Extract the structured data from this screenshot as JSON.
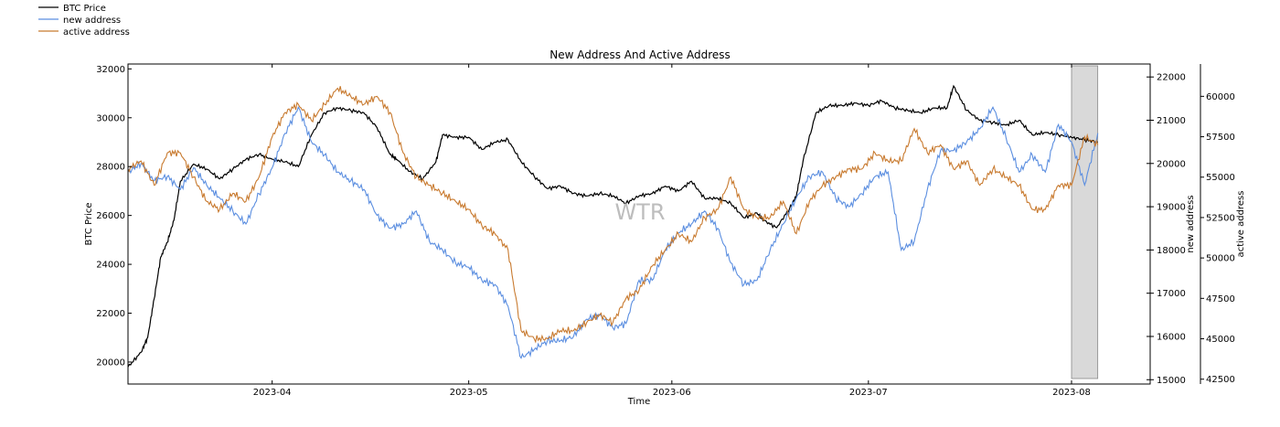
{
  "chart_data": {
    "type": "line",
    "title": "New Address And Active Address",
    "xlabel": "Time",
    "watermark": "WTR",
    "x_ticks": [
      "2023-04",
      "2023-05",
      "2023-06",
      "2023-07",
      "2023-08"
    ],
    "x_range": [
      "2023-03-10",
      "2023-08-13"
    ],
    "legend_placement": "top-left outside",
    "grid": false,
    "highlight_range": [
      "2023-08-01",
      "2023-08-05"
    ],
    "highlight_color": "#d9d9d9",
    "axes": [
      {
        "id": "btc",
        "label": "BTC Price",
        "side": "left",
        "ylim": [
          19100,
          32200
        ],
        "ticks": [
          20000,
          22000,
          24000,
          26000,
          28000,
          30000,
          32000
        ]
      },
      {
        "id": "new",
        "label": "new address",
        "side": "right",
        "ylim": [
          14900,
          22300
        ],
        "ticks": [
          15000,
          16000,
          17000,
          18000,
          19000,
          20000,
          21000,
          22000
        ]
      },
      {
        "id": "active",
        "label": "active address",
        "side": "right-outer",
        "ylim": [
          42200,
          62000
        ],
        "ticks": [
          42500,
          45000,
          47500,
          50000,
          52500,
          55000,
          57500,
          60000
        ]
      }
    ],
    "series": [
      {
        "name": "BTC Price",
        "axis": "btc",
        "color": "#000000",
        "x": [
          "2023-03-10",
          "2023-03-12",
          "2023-03-13",
          "2023-03-14",
          "2023-03-15",
          "2023-03-16",
          "2023-03-17",
          "2023-03-18",
          "2023-03-20",
          "2023-03-22",
          "2023-03-24",
          "2023-03-26",
          "2023-03-28",
          "2023-03-30",
          "2023-04-01",
          "2023-04-03",
          "2023-04-05",
          "2023-04-07",
          "2023-04-09",
          "2023-04-11",
          "2023-04-13",
          "2023-04-15",
          "2023-04-17",
          "2023-04-19",
          "2023-04-20",
          "2023-04-22",
          "2023-04-24",
          "2023-04-26",
          "2023-04-27",
          "2023-04-29",
          "2023-05-01",
          "2023-05-03",
          "2023-05-05",
          "2023-05-07",
          "2023-05-09",
          "2023-05-11",
          "2023-05-13",
          "2023-05-15",
          "2023-05-17",
          "2023-05-19",
          "2023-05-21",
          "2023-05-23",
          "2023-05-25",
          "2023-05-27",
          "2023-05-29",
          "2023-05-31",
          "2023-06-02",
          "2023-06-04",
          "2023-06-06",
          "2023-06-08",
          "2023-06-10",
          "2023-06-12",
          "2023-06-14",
          "2023-06-15",
          "2023-06-17",
          "2023-06-19",
          "2023-06-20",
          "2023-06-21",
          "2023-06-23",
          "2023-06-25",
          "2023-06-27",
          "2023-06-29",
          "2023-07-01",
          "2023-07-03",
          "2023-07-05",
          "2023-07-07",
          "2023-07-09",
          "2023-07-11",
          "2023-07-13",
          "2023-07-14",
          "2023-07-16",
          "2023-07-18",
          "2023-07-20",
          "2023-07-22",
          "2023-07-24",
          "2023-07-26",
          "2023-07-28",
          "2023-07-30",
          "2023-08-01",
          "2023-08-03",
          "2023-08-05"
        ],
        "values": [
          19800,
          20400,
          21000,
          22600,
          24300,
          24900,
          25800,
          27400,
          28100,
          27900,
          27500,
          27900,
          28300,
          28500,
          28300,
          28200,
          28000,
          29300,
          30200,
          30400,
          30300,
          30200,
          29600,
          28500,
          28300,
          27800,
          27500,
          28200,
          29300,
          29200,
          29200,
          28700,
          29000,
          29100,
          28200,
          27600,
          27100,
          27200,
          26900,
          26800,
          26900,
          26800,
          26500,
          26800,
          26900,
          27200,
          27000,
          27400,
          26700,
          26700,
          26500,
          25900,
          26100,
          25800,
          25500,
          26300,
          26800,
          28200,
          30200,
          30500,
          30500,
          30600,
          30500,
          30700,
          30400,
          30300,
          30200,
          30400,
          30400,
          31300,
          30300,
          29900,
          29800,
          29700,
          29900,
          29300,
          29400,
          29300,
          29200,
          29100,
          29000
        ]
      },
      {
        "name": "new address",
        "axis": "new",
        "color": "#5b8ee0",
        "x": [
          "2023-03-10",
          "2023-03-12",
          "2023-03-14",
          "2023-03-16",
          "2023-03-18",
          "2023-03-20",
          "2023-03-22",
          "2023-03-24",
          "2023-03-26",
          "2023-03-28",
          "2023-03-30",
          "2023-04-01",
          "2023-04-03",
          "2023-04-05",
          "2023-04-07",
          "2023-04-09",
          "2023-04-11",
          "2023-04-13",
          "2023-04-15",
          "2023-04-17",
          "2023-04-19",
          "2023-04-21",
          "2023-04-23",
          "2023-04-25",
          "2023-04-27",
          "2023-04-29",
          "2023-05-01",
          "2023-05-03",
          "2023-05-05",
          "2023-05-07",
          "2023-05-09",
          "2023-05-11",
          "2023-05-13",
          "2023-05-15",
          "2023-05-17",
          "2023-05-19",
          "2023-05-21",
          "2023-05-23",
          "2023-05-25",
          "2023-05-27",
          "2023-05-29",
          "2023-05-31",
          "2023-06-02",
          "2023-06-04",
          "2023-06-06",
          "2023-06-08",
          "2023-06-10",
          "2023-06-12",
          "2023-06-14",
          "2023-06-16",
          "2023-06-18",
          "2023-06-20",
          "2023-06-22",
          "2023-06-24",
          "2023-06-26",
          "2023-06-28",
          "2023-06-30",
          "2023-07-02",
          "2023-07-04",
          "2023-07-06",
          "2023-07-08",
          "2023-07-10",
          "2023-07-12",
          "2023-07-14",
          "2023-07-16",
          "2023-07-18",
          "2023-07-20",
          "2023-07-22",
          "2023-07-24",
          "2023-07-26",
          "2023-07-28",
          "2023-07-30",
          "2023-08-01",
          "2023-08-03",
          "2023-08-05"
        ],
        "values": [
          19800,
          20000,
          19600,
          19700,
          19400,
          19900,
          19500,
          19200,
          18900,
          18600,
          19300,
          19900,
          20700,
          21300,
          20500,
          20200,
          19800,
          19600,
          19400,
          18800,
          18500,
          18600,
          18900,
          18200,
          18000,
          17700,
          17600,
          17300,
          17200,
          16700,
          15500,
          15700,
          15900,
          15900,
          16000,
          16400,
          16500,
          16200,
          16300,
          17300,
          17300,
          18000,
          18400,
          18600,
          18900,
          18500,
          17700,
          17200,
          17300,
          18000,
          18600,
          19200,
          19700,
          19800,
          19200,
          19000,
          19300,
          19700,
          19800,
          18000,
          18200,
          19400,
          20300,
          20300,
          20500,
          20800,
          21300,
          20600,
          19800,
          20200,
          19800,
          20900,
          20500,
          19500,
          20700
        ]
      },
      {
        "name": "active address",
        "axis": "active",
        "color": "#c87a2f",
        "x": [
          "2023-03-10",
          "2023-03-12",
          "2023-03-14",
          "2023-03-16",
          "2023-03-18",
          "2023-03-20",
          "2023-03-22",
          "2023-03-24",
          "2023-03-26",
          "2023-03-28",
          "2023-03-30",
          "2023-04-01",
          "2023-04-03",
          "2023-04-05",
          "2023-04-07",
          "2023-04-09",
          "2023-04-11",
          "2023-04-13",
          "2023-04-15",
          "2023-04-17",
          "2023-04-19",
          "2023-04-21",
          "2023-04-23",
          "2023-04-25",
          "2023-04-27",
          "2023-04-29",
          "2023-05-01",
          "2023-05-03",
          "2023-05-05",
          "2023-05-07",
          "2023-05-09",
          "2023-05-11",
          "2023-05-13",
          "2023-05-15",
          "2023-05-17",
          "2023-05-19",
          "2023-05-21",
          "2023-05-23",
          "2023-05-25",
          "2023-05-27",
          "2023-05-29",
          "2023-05-31",
          "2023-06-02",
          "2023-06-04",
          "2023-06-06",
          "2023-06-08",
          "2023-06-10",
          "2023-06-12",
          "2023-06-14",
          "2023-06-16",
          "2023-06-18",
          "2023-06-20",
          "2023-06-22",
          "2023-06-24",
          "2023-06-26",
          "2023-06-28",
          "2023-06-30",
          "2023-07-02",
          "2023-07-04",
          "2023-07-06",
          "2023-07-08",
          "2023-07-10",
          "2023-07-12",
          "2023-07-14",
          "2023-07-16",
          "2023-07-18",
          "2023-07-20",
          "2023-07-22",
          "2023-07-24",
          "2023-07-26",
          "2023-07-28",
          "2023-07-30",
          "2023-08-01",
          "2023-08-03",
          "2023-08-05"
        ],
        "values": [
          55500,
          56000,
          54500,
          56500,
          56500,
          55000,
          53500,
          53000,
          54000,
          53500,
          55000,
          57500,
          59000,
          59500,
          58500,
          59500,
          60500,
          60000,
          59500,
          60000,
          59000,
          56500,
          55000,
          54500,
          54000,
          53500,
          53000,
          52000,
          51500,
          50500,
          45500,
          45000,
          45000,
          45500,
          45500,
          46000,
          46500,
          46000,
          47500,
          48000,
          49500,
          50500,
          51500,
          51000,
          52500,
          53000,
          55000,
          53000,
          52500,
          52500,
          53500,
          51500,
          53500,
          54500,
          55000,
          55500,
          55500,
          56500,
          56000,
          56000,
          58000,
          56500,
          57000,
          55500,
          56000,
          54500,
          55500,
          55000,
          54500,
          53000,
          53000,
          54500,
          54500,
          57500,
          57000
        ]
      }
    ]
  }
}
